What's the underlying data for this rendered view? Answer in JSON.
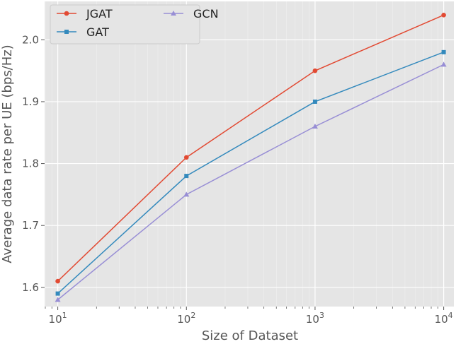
{
  "chart_data": {
    "type": "line",
    "xscale": "log",
    "x": [
      10,
      100,
      1000,
      10000
    ],
    "x_tick_labels": [
      {
        "base": "10",
        "exp": "1"
      },
      {
        "base": "10",
        "exp": "2"
      },
      {
        "base": "10",
        "exp": "3"
      },
      {
        "base": "10",
        "exp": "4"
      }
    ],
    "xlabel": "Size of Dataset",
    "ylabel": "Average data rate per UE (bps/Hz)",
    "xlim": [
      7.9,
      12000
    ],
    "ylim": [
      1.569,
      2.062
    ],
    "y_ticks": [
      1.6,
      1.7,
      1.8,
      1.9,
      2.0
    ],
    "y_tick_labels": [
      "1.6",
      "1.7",
      "1.8",
      "1.9",
      "2.0"
    ],
    "grid": true,
    "style": "ggplot",
    "legend_position": "top-left",
    "series": [
      {
        "name": "JGAT",
        "marker": "circle",
        "color": "#E24A33",
        "values": [
          1.61,
          1.81,
          1.95,
          2.04
        ]
      },
      {
        "name": "GAT",
        "marker": "square",
        "color": "#348ABD",
        "values": [
          1.59,
          1.78,
          1.9,
          1.98
        ]
      },
      {
        "name": "GCN",
        "marker": "triangle",
        "color": "#988ED5",
        "values": [
          1.58,
          1.75,
          1.86,
          1.96
        ]
      }
    ]
  }
}
